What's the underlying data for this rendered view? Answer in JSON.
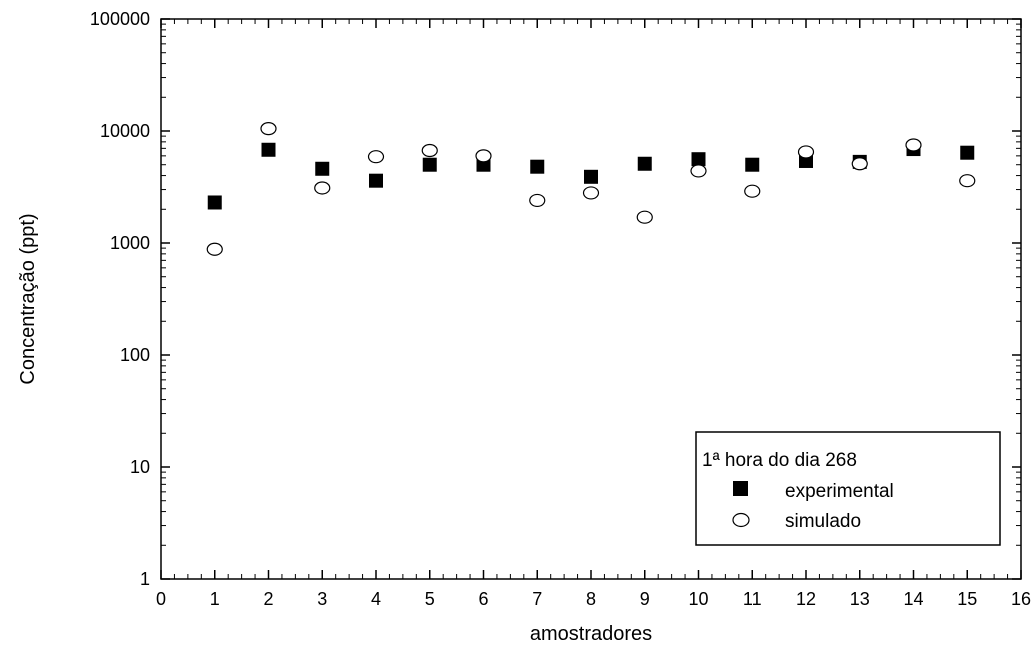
{
  "chart_data": {
    "type": "scatter",
    "xlabel": "amostradores",
    "ylabel": "Concentração (ppt)",
    "xlim": [
      0,
      16
    ],
    "ylim": [
      1,
      100000
    ],
    "yscale": "log",
    "x_ticks": [
      "0",
      "1",
      "2",
      "3",
      "4",
      "5",
      "6",
      "7",
      "8",
      "9",
      "10",
      "11",
      "12",
      "13",
      "14",
      "15",
      "16"
    ],
    "y_ticks": [
      "1",
      "10",
      "100",
      "1000",
      "10000",
      "100000"
    ],
    "legend": {
      "title": "1ª hora do dia 268",
      "placement": "bottom-right"
    },
    "series": [
      {
        "name": "experimental",
        "marker": "filled-square",
        "color": "#000000",
        "x": [
          1,
          2,
          3,
          4,
          5,
          6,
          7,
          8,
          9,
          10,
          11,
          12,
          13,
          14,
          15
        ],
        "y": [
          2300,
          6800,
          4600,
          3600,
          5000,
          5000,
          4800,
          3900,
          5100,
          5600,
          5000,
          5400,
          5300,
          6900,
          6400
        ]
      },
      {
        "name": "simulado",
        "marker": "open-circle",
        "color": "#000000",
        "x": [
          1,
          2,
          3,
          4,
          5,
          6,
          7,
          8,
          9,
          10,
          11,
          12,
          13,
          14,
          15
        ],
        "y": [
          880,
          10500,
          3100,
          5900,
          6700,
          6000,
          2400,
          2800,
          1700,
          4400,
          2900,
          6500,
          5100,
          7500,
          3600
        ]
      }
    ]
  }
}
